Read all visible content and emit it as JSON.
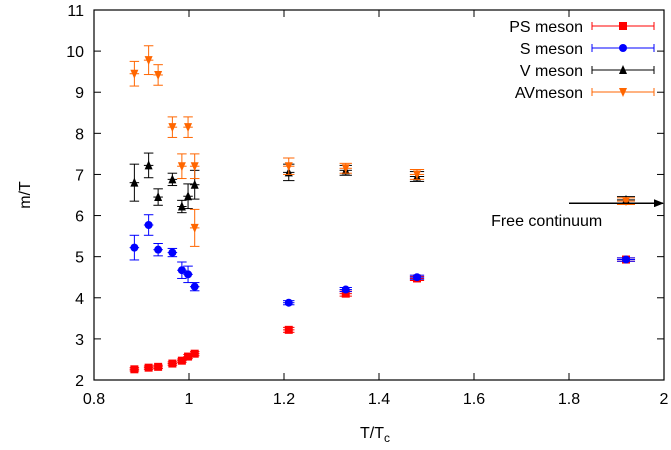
{
  "chart_data": {
    "type": "scatter",
    "title": "",
    "xlabel": "T/T",
    "xlabel_sub": "c",
    "ylabel": "m/T",
    "xlim": [
      0.8,
      2.0
    ],
    "ylim": [
      2,
      11
    ],
    "xticks": [
      0.8,
      1.0,
      1.2,
      1.4,
      1.6,
      1.8,
      2.0
    ],
    "xtick_labels": [
      "0.8",
      "1",
      "1.2",
      "1.4",
      "1.6",
      "1.8",
      "2"
    ],
    "yticks": [
      2,
      3,
      4,
      5,
      6,
      7,
      8,
      9,
      10,
      11
    ],
    "ytick_labels": [
      "2",
      "3",
      "4",
      "5",
      "6",
      "7",
      "8",
      "9",
      "10",
      "11"
    ],
    "grid": false,
    "legend_position": "top-right",
    "series": [
      {
        "name": "PS meson",
        "color": "#ff0000",
        "marker": "square",
        "points": [
          {
            "x": 0.885,
            "y": 2.26,
            "yerr": 0.04,
            "xerr": 0.01
          },
          {
            "x": 0.915,
            "y": 2.3,
            "yerr": 0.04,
            "xerr": 0.01
          },
          {
            "x": 0.935,
            "y": 2.32,
            "yerr": 0.04,
            "xerr": 0.01
          },
          {
            "x": 0.965,
            "y": 2.4,
            "yerr": 0.04,
            "xerr": 0.01
          },
          {
            "x": 0.985,
            "y": 2.47,
            "yerr": 0.04,
            "xerr": 0.01
          },
          {
            "x": 0.998,
            "y": 2.57,
            "yerr": 0.05,
            "xerr": 0.01
          },
          {
            "x": 1.012,
            "y": 2.64,
            "yerr": 0.05,
            "xerr": 0.01
          },
          {
            "x": 1.21,
            "y": 3.22,
            "yerr": 0.06,
            "xerr": 0.012
          },
          {
            "x": 1.33,
            "y": 4.1,
            "yerr": 0.06,
            "xerr": 0.013
          },
          {
            "x": 1.48,
            "y": 4.47,
            "yerr": 0.05,
            "xerr": 0.015
          },
          {
            "x": 1.92,
            "y": 4.93,
            "yerr": 0.04,
            "xerr": 0.019
          }
        ]
      },
      {
        "name": "S meson",
        "color": "#0000ff",
        "marker": "circle",
        "points": [
          {
            "x": 0.885,
            "y": 5.22,
            "yerr": 0.3,
            "xerr": 0.01
          },
          {
            "x": 0.915,
            "y": 5.77,
            "yerr": 0.25,
            "xerr": 0.01
          },
          {
            "x": 0.935,
            "y": 5.17,
            "yerr": 0.15,
            "xerr": 0.01
          },
          {
            "x": 0.965,
            "y": 5.1,
            "yerr": 0.1,
            "xerr": 0.01
          },
          {
            "x": 0.985,
            "y": 4.67,
            "yerr": 0.2,
            "xerr": 0.01
          },
          {
            "x": 0.998,
            "y": 4.57,
            "yerr": 0.2,
            "xerr": 0.01
          },
          {
            "x": 1.012,
            "y": 4.27,
            "yerr": 0.1,
            "xerr": 0.01
          },
          {
            "x": 1.21,
            "y": 3.88,
            "yerr": 0.05,
            "xerr": 0.012
          },
          {
            "x": 1.33,
            "y": 4.2,
            "yerr": 0.05,
            "xerr": 0.013
          },
          {
            "x": 1.48,
            "y": 4.5,
            "yerr": 0.05,
            "xerr": 0.015
          },
          {
            "x": 1.92,
            "y": 4.93,
            "yerr": 0.04,
            "xerr": 0.019
          }
        ]
      },
      {
        "name": "V meson",
        "color": "#000000",
        "marker": "triangle-up",
        "points": [
          {
            "x": 0.885,
            "y": 6.8,
            "yerr": 0.45,
            "xerr": 0.01
          },
          {
            "x": 0.915,
            "y": 7.22,
            "yerr": 0.3,
            "xerr": 0.01
          },
          {
            "x": 0.935,
            "y": 6.45,
            "yerr": 0.2,
            "xerr": 0.01
          },
          {
            "x": 0.965,
            "y": 6.88,
            "yerr": 0.15,
            "xerr": 0.01
          },
          {
            "x": 0.985,
            "y": 6.22,
            "yerr": 0.15,
            "xerr": 0.01
          },
          {
            "x": 0.998,
            "y": 6.47,
            "yerr": 0.3,
            "xerr": 0.01
          },
          {
            "x": 1.012,
            "y": 6.75,
            "yerr": 0.35,
            "xerr": 0.01
          },
          {
            "x": 1.21,
            "y": 7.05,
            "yerr": 0.2,
            "xerr": 0.012
          },
          {
            "x": 1.33,
            "y": 7.1,
            "yerr": 0.12,
            "xerr": 0.013
          },
          {
            "x": 1.48,
            "y": 6.95,
            "yerr": 0.12,
            "xerr": 0.015
          },
          {
            "x": 1.92,
            "y": 6.38,
            "yerr": 0.08,
            "xerr": 0.019
          }
        ]
      },
      {
        "name": "AVmeson",
        "color": "#ff6600",
        "marker": "triangle-down",
        "points": [
          {
            "x": 0.885,
            "y": 9.45,
            "yerr": 0.3,
            "xerr": 0.01
          },
          {
            "x": 0.915,
            "y": 9.78,
            "yerr": 0.35,
            "xerr": 0.01
          },
          {
            "x": 0.935,
            "y": 9.42,
            "yerr": 0.25,
            "xerr": 0.01
          },
          {
            "x": 0.965,
            "y": 8.15,
            "yerr": 0.25,
            "xerr": 0.01
          },
          {
            "x": 0.985,
            "y": 7.2,
            "yerr": 0.3,
            "xerr": 0.01
          },
          {
            "x": 0.998,
            "y": 8.15,
            "yerr": 0.25,
            "xerr": 0.01
          },
          {
            "x": 1.012,
            "y": 7.2,
            "yerr": 0.3,
            "xerr": 0.01
          },
          {
            "x": 1.012,
            "y": 5.7,
            "yerr": 0.45,
            "xerr": 0.01
          },
          {
            "x": 1.21,
            "y": 7.2,
            "yerr": 0.2,
            "xerr": 0.012
          },
          {
            "x": 1.33,
            "y": 7.15,
            "yerr": 0.12,
            "xerr": 0.013
          },
          {
            "x": 1.48,
            "y": 7.0,
            "yerr": 0.12,
            "xerr": 0.015
          },
          {
            "x": 1.92,
            "y": 6.35,
            "yerr": 0.08,
            "xerr": 0.019
          }
        ]
      }
    ],
    "annotations": [
      {
        "text": "Free continuum",
        "x": 1.87,
        "y": 5.75,
        "arrow_from": [
          1.8,
          6.3
        ],
        "arrow_to": [
          2.0,
          6.3
        ]
      }
    ]
  }
}
